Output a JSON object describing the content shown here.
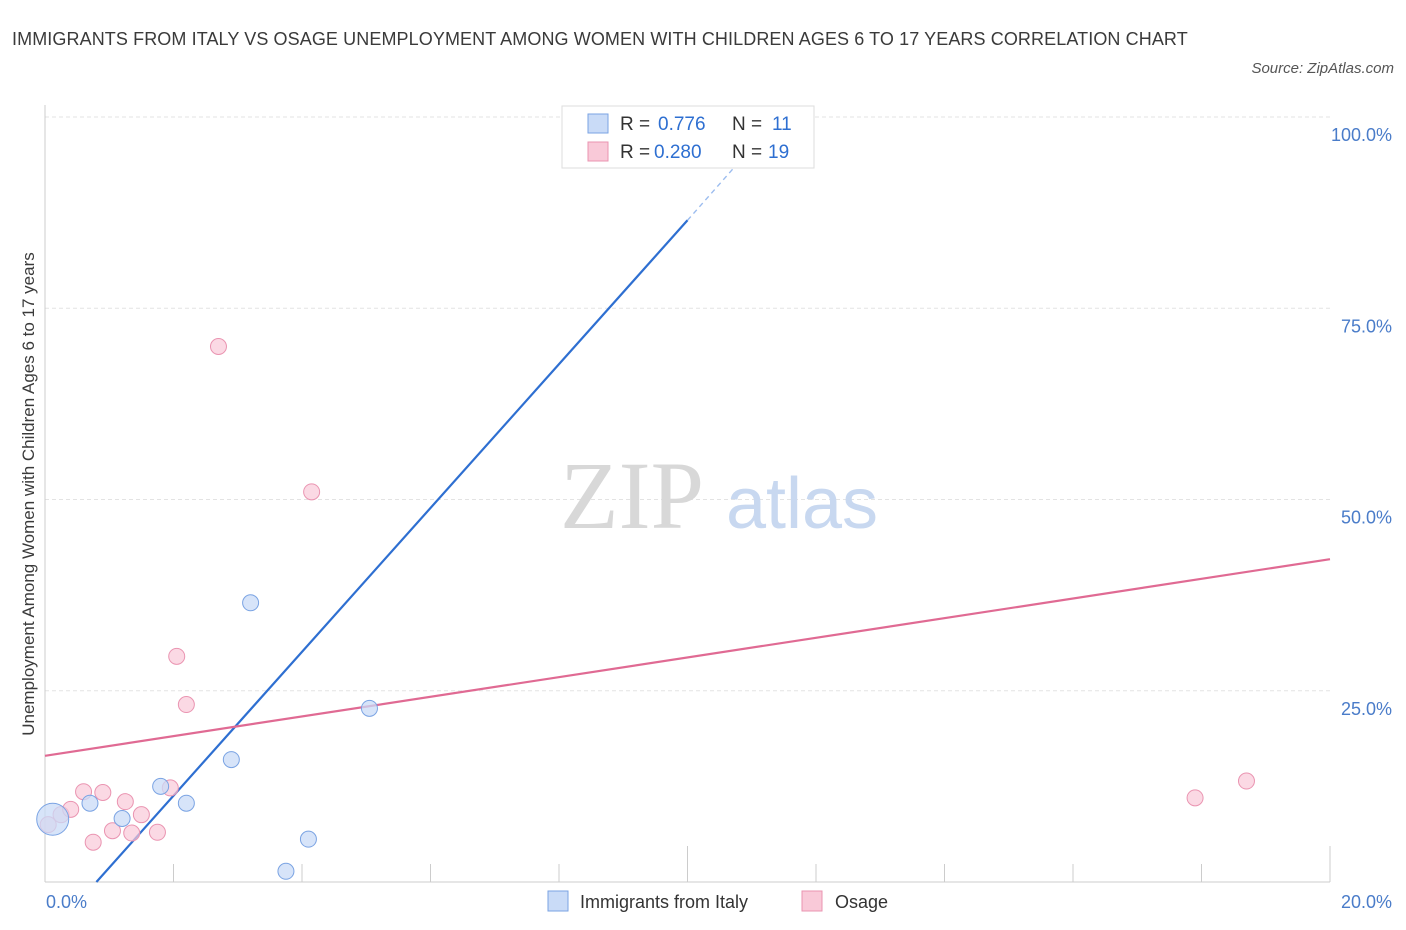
{
  "title": "IMMIGRANTS FROM ITALY VS OSAGE UNEMPLOYMENT AMONG WOMEN WITH CHILDREN AGES 6 TO 17 YEARS CORRELATION CHART",
  "source": "Source: ZipAtlas.com",
  "watermark": {
    "zip": "ZIP",
    "atlas": "atlas"
  },
  "colors": {
    "italy": "#2e6fd1",
    "italy_fill": "#c9dbf7",
    "osage": "#e06a93",
    "osage_fill": "#f9c9d8",
    "tick": "#4a7cc9",
    "grid": "#e3e3e3"
  },
  "legend": {
    "rows": [
      {
        "r_label": "R =",
        "r_value": "0.776",
        "n_label": "N =",
        "n_value": "11"
      },
      {
        "r_label": "R =",
        "r_value": "0.280",
        "n_label": "N =",
        "n_value": "19"
      }
    ]
  },
  "bottom_legend": {
    "italy": "Immigrants from Italy",
    "osage": "Osage"
  },
  "chart_data": {
    "type": "scatter",
    "title": "IMMIGRANTS FROM ITALY VS OSAGE UNEMPLOYMENT AMONG WOMEN WITH CHILDREN AGES 6 TO 17 YEARS CORRELATION CHART",
    "xlabel": "",
    "ylabel": "Unemployment Among Women with Children Ages 6 to 17 years",
    "xlim": [
      0,
      20
    ],
    "ylim": [
      0,
      100
    ],
    "x_tick_labels": [
      "0.0%",
      "20.0%"
    ],
    "y_tick_labels": [
      "100.0%",
      "75.0%",
      "50.0%",
      "25.0%"
    ],
    "y_ticks": [
      100,
      75,
      50,
      25
    ],
    "grid": true,
    "legend_position": "top-center",
    "series": [
      {
        "name": "Immigrants from Italy",
        "points": [
          {
            "x": 0.12,
            "y": 8.2,
            "big": true
          },
          {
            "x": 0.7,
            "y": 10.3
          },
          {
            "x": 1.2,
            "y": 8.3
          },
          {
            "x": 1.8,
            "y": 12.5
          },
          {
            "x": 2.2,
            "y": 10.3
          },
          {
            "x": 2.9,
            "y": 16.0
          },
          {
            "x": 3.2,
            "y": 36.5
          },
          {
            "x": 3.75,
            "y": 1.4
          },
          {
            "x": 4.1,
            "y": 5.6
          },
          {
            "x": 5.05,
            "y": 22.7
          },
          {
            "x": 8.3,
            "y": 100.0
          }
        ],
        "trend": {
          "x1": 0.8,
          "y1": 0.0,
          "x2": 10.0,
          "y2": 86.5,
          "dash_to_x": 11.0,
          "dash_to_y": 96.0
        }
      },
      {
        "name": "Osage",
        "points": [
          {
            "x": 0.05,
            "y": 7.5
          },
          {
            "x": 0.25,
            "y": 8.8
          },
          {
            "x": 0.4,
            "y": 9.5
          },
          {
            "x": 0.6,
            "y": 11.8
          },
          {
            "x": 0.75,
            "y": 5.2
          },
          {
            "x": 0.9,
            "y": 11.7
          },
          {
            "x": 1.05,
            "y": 6.7
          },
          {
            "x": 1.25,
            "y": 10.5
          },
          {
            "x": 1.35,
            "y": 6.4
          },
          {
            "x": 1.5,
            "y": 8.8
          },
          {
            "x": 1.75,
            "y": 6.5
          },
          {
            "x": 1.95,
            "y": 12.3
          },
          {
            "x": 2.05,
            "y": 29.5
          },
          {
            "x": 2.2,
            "y": 23.2
          },
          {
            "x": 2.7,
            "y": 70.0
          },
          {
            "x": 4.15,
            "y": 51.0
          },
          {
            "x": 11.0,
            "y": 100.0
          },
          {
            "x": 17.9,
            "y": 11.0
          },
          {
            "x": 18.7,
            "y": 13.2
          }
        ],
        "trend": {
          "x1": 0.0,
          "y1": 16.5,
          "x2": 20.0,
          "y2": 42.2
        }
      }
    ]
  }
}
